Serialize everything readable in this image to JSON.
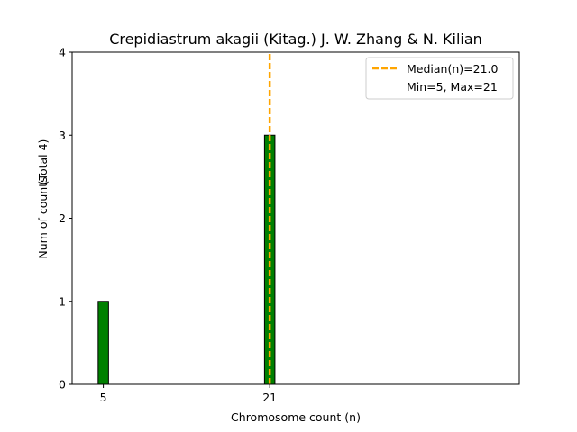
{
  "chart_data": {
    "type": "bar",
    "title": "Crepidiastrum akagii (Kitag.) J. W. Zhang & N. Kilian",
    "xlabel": "Chromosome count (n)",
    "ylabel": "Num of counts",
    "ylabel_total": "(Total 4)",
    "x_ticks": [
      "5",
      "21"
    ],
    "y_ticks": [
      "0",
      "1",
      "2",
      "3",
      "4"
    ],
    "ylim": [
      0,
      4
    ],
    "xlim": [
      2.0,
      45.0
    ],
    "bars": [
      {
        "x": 5,
        "value": 1
      },
      {
        "x": 21,
        "value": 3
      }
    ],
    "bar_color": "#008000",
    "median": 21.0,
    "median_color": "#FFA500",
    "legend": {
      "placement": "top-right",
      "median_label": "Median(n)=21.0",
      "range_label": "Min=5, Max=21"
    },
    "grid": false
  }
}
